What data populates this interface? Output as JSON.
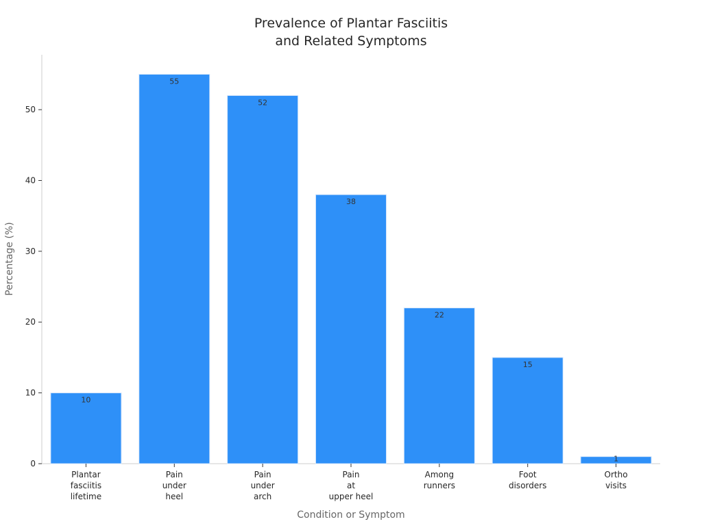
{
  "chart_data": {
    "type": "bar",
    "title_lines": [
      "Prevalence of Plantar Fasciitis",
      "and Related Symptoms"
    ],
    "xlabel": "Condition or Symptom",
    "ylabel": "Percentage (%)",
    "ylim": [
      0,
      57.75
    ],
    "yticks": [
      0,
      10,
      20,
      30,
      40,
      50
    ],
    "grid": false,
    "legend": "none",
    "bar_color": "#2e90f8",
    "categories": [
      [
        "Plantar",
        "fasciitis",
        "lifetime"
      ],
      [
        "Pain",
        "under",
        "heel"
      ],
      [
        "Pain",
        "under",
        "arch"
      ],
      [
        "Pain",
        "at",
        "upper heel"
      ],
      [
        "Among",
        "runners"
      ],
      [
        "Foot",
        "disorders"
      ],
      [
        "Ortho",
        "visits"
      ]
    ],
    "values": [
      10,
      55,
      52,
      38,
      22,
      15,
      1
    ],
    "data_labels": [
      "10",
      "55",
      "52",
      "38",
      "22",
      "15",
      "1"
    ]
  }
}
